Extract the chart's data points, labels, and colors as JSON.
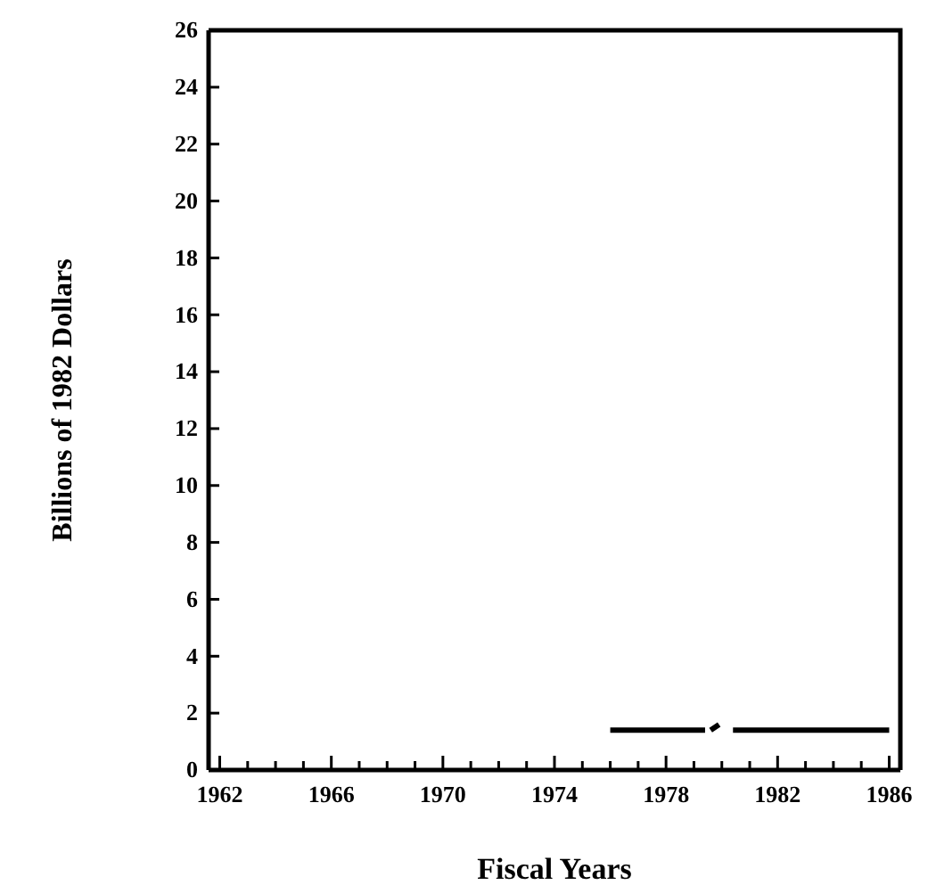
{
  "chart_data": {
    "type": "line",
    "xlabel": "Fiscal Years",
    "ylabel": "Billions of 1982 Dollars",
    "series": [
      {
        "color": "#000000",
        "x": [
          1976,
          1979.4
        ],
        "values": [
          1.4,
          1.4
        ]
      },
      {
        "color": "#000000",
        "x": [
          1979.6,
          1979.9
        ],
        "values": [
          1.4,
          1.6
        ]
      },
      {
        "color": "#000000",
        "x": [
          1980.4,
          1986
        ],
        "values": [
          1.4,
          1.4
        ]
      }
    ],
    "xlim": [
      1961.6,
      1986.4
    ],
    "ylim": [
      0,
      26
    ],
    "xticks": [
      1962,
      {
        "value": 1963,
        "label": null
      },
      {
        "value": 1964,
        "label": null
      },
      {
        "value": 1965,
        "label": null
      },
      1966,
      {
        "value": 1967,
        "label": null
      },
      {
        "value": 1968,
        "label": null
      },
      {
        "value": 1969,
        "label": null
      },
      1970,
      {
        "value": 1971,
        "label": null
      },
      {
        "value": 1972,
        "label": null
      },
      {
        "value": 1973,
        "label": null
      },
      1974,
      {
        "value": 1975,
        "label": null
      },
      {
        "value": 1976,
        "label": null
      },
      {
        "value": 1977,
        "label": null
      },
      1978,
      {
        "value": 1979,
        "label": null
      },
      {
        "value": 1980,
        "label": null
      },
      {
        "value": 1981,
        "label": null
      },
      1982,
      {
        "value": 1983,
        "label": null
      },
      {
        "value": 1984,
        "label": null
      },
      {
        "value": 1985,
        "label": null
      },
      1986
    ],
    "yticks": [
      0,
      2,
      4,
      6,
      8,
      10,
      12,
      14,
      16,
      18,
      20,
      22,
      24,
      26
    ],
    "grid": false,
    "marker": "none",
    "line_style": "solid"
  }
}
